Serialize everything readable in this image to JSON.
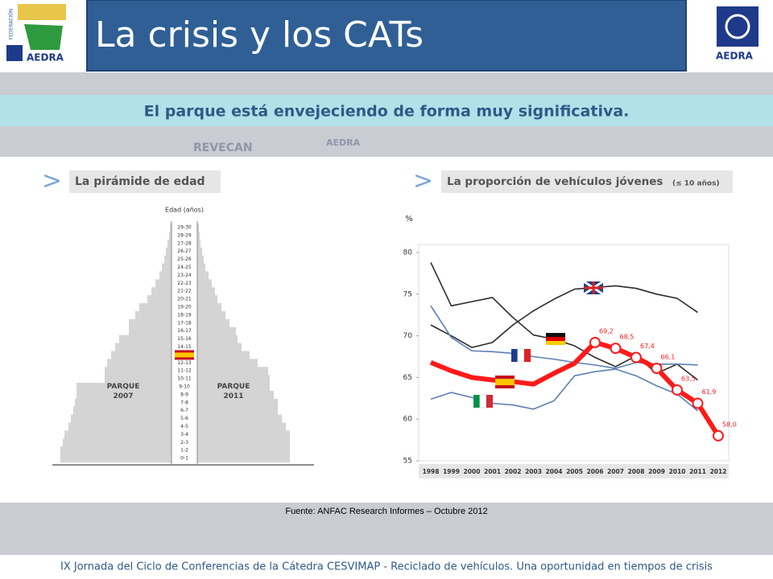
{
  "header": {
    "title": "La crisis y los CATs",
    "logo_left_top": "FEDERACIÓN",
    "logo_left": "AEDRA",
    "logo_right": "AEDRA"
  },
  "subtitle": "El parque está envejeciendo de forma muy significativa.",
  "background_marks": [
    "REVECAN",
    "AEDRA"
  ],
  "panels": [
    {
      "heading": "La pirámide de edad"
    },
    {
      "heading": "La proporción de vehículos jóvenes",
      "heading_note": "(≤ 10 años)"
    }
  ],
  "chart_data": [
    {
      "type": "pyramid",
      "axis_title": "Edad (años)",
      "categories": [
        "0-1",
        "1-2",
        "2-3",
        "3-4",
        "4-5",
        "5-6",
        "6-7",
        "7-8",
        "8-9",
        "9-10",
        "10-11",
        "11-12",
        "12-13",
        "13-14",
        "14-15",
        "15-16",
        "16-17",
        "17-18",
        "18-19",
        "19-20",
        "20-21",
        "21-22",
        "22-23",
        "23-24",
        "24-25",
        "25-26",
        "26-27",
        "27-28",
        "28-29",
        "29-30"
      ],
      "xlim": [
        0,
        150
      ],
      "series": [
        {
          "name": "PARQUE 2007",
          "side": "left",
          "color": "#d4d4d4",
          "values": [
            138,
            138,
            135,
            133,
            128,
            125,
            122,
            120,
            118,
            118,
            83,
            83,
            80,
            75,
            70,
            65,
            53,
            53,
            45,
            40,
            30,
            25,
            20,
            15,
            12,
            9,
            7,
            5,
            3,
            2
          ]
        },
        {
          "name": "PARQUE 2011",
          "side": "right",
          "color": "#d4d4d4",
          "values": [
            115,
            115,
            115,
            115,
            110,
            105,
            100,
            100,
            95,
            90,
            90,
            88,
            75,
            65,
            55,
            50,
            48,
            40,
            35,
            30,
            25,
            22,
            18,
            14,
            10,
            8,
            6,
            4,
            3,
            2
          ]
        }
      ]
    },
    {
      "type": "line",
      "ylabel": "%",
      "categories": [
        "1998",
        "1999",
        "2000",
        "2001",
        "2002",
        "2003",
        "2004",
        "2005",
        "2006",
        "2007",
        "2008",
        "2009",
        "2010",
        "2011",
        "2012"
      ],
      "ylim": [
        55,
        80
      ],
      "yticks": [
        55,
        60,
        65,
        70,
        75,
        80
      ],
      "series": [
        {
          "color": "#2b2b2b",
          "width": 1.6,
          "values": [
            78.8,
            73.6,
            74.1,
            74.6,
            72.2,
            70.1,
            69.6,
            68.8,
            67.4,
            66.3,
            67.6,
            65.5,
            66.6,
            64.7,
            null
          ]
        },
        {
          "color": "#2b2b2b",
          "width": 1.6,
          "values": [
            71.3,
            70.0,
            68.6,
            69.2,
            71.3,
            73.0,
            74.4,
            75.6,
            75.8,
            76.0,
            75.7,
            75.0,
            74.5,
            72.8,
            null
          ]
        },
        {
          "color": "#5b7fb5",
          "width": 1.6,
          "values": [
            73.6,
            69.8,
            68.2,
            68.1,
            67.9,
            67.5,
            67.2,
            66.8,
            66.5,
            66.1,
            66.8,
            66.6,
            66.6,
            66.5,
            null
          ]
        },
        {
          "color": "#5b7fb5",
          "width": 1.6,
          "values": [
            62.4,
            63.2,
            62.6,
            61.9,
            61.7,
            61.2,
            62.2,
            65.2,
            65.7,
            66.0,
            65.2,
            64.0,
            63.0,
            61.0,
            null
          ]
        },
        {
          "color": "#ff1a1a",
          "width": 6,
          "markers": true,
          "values": [
            66.8,
            65.8,
            65.0,
            64.7,
            64.5,
            64.2,
            65.5,
            66.7,
            69.2,
            68.5,
            67.4,
            66.1,
            63.5,
            61.9,
            58.0
          ],
          "value_labels": [
            null,
            null,
            null,
            null,
            null,
            null,
            null,
            null,
            "69,2",
            "68,5",
            "67,4",
            "66,1",
            "63,5",
            "61,9",
            "58,0"
          ]
        }
      ]
    }
  ],
  "source": "Fuente: ANFAC Research Informes – Octubre 2012",
  "footer": "IX Jornada del Ciclo de Conferencias de la Cátedra CESVIMAP - Reciclado de vehículos. Una oportunidad en tiempos de crisis"
}
